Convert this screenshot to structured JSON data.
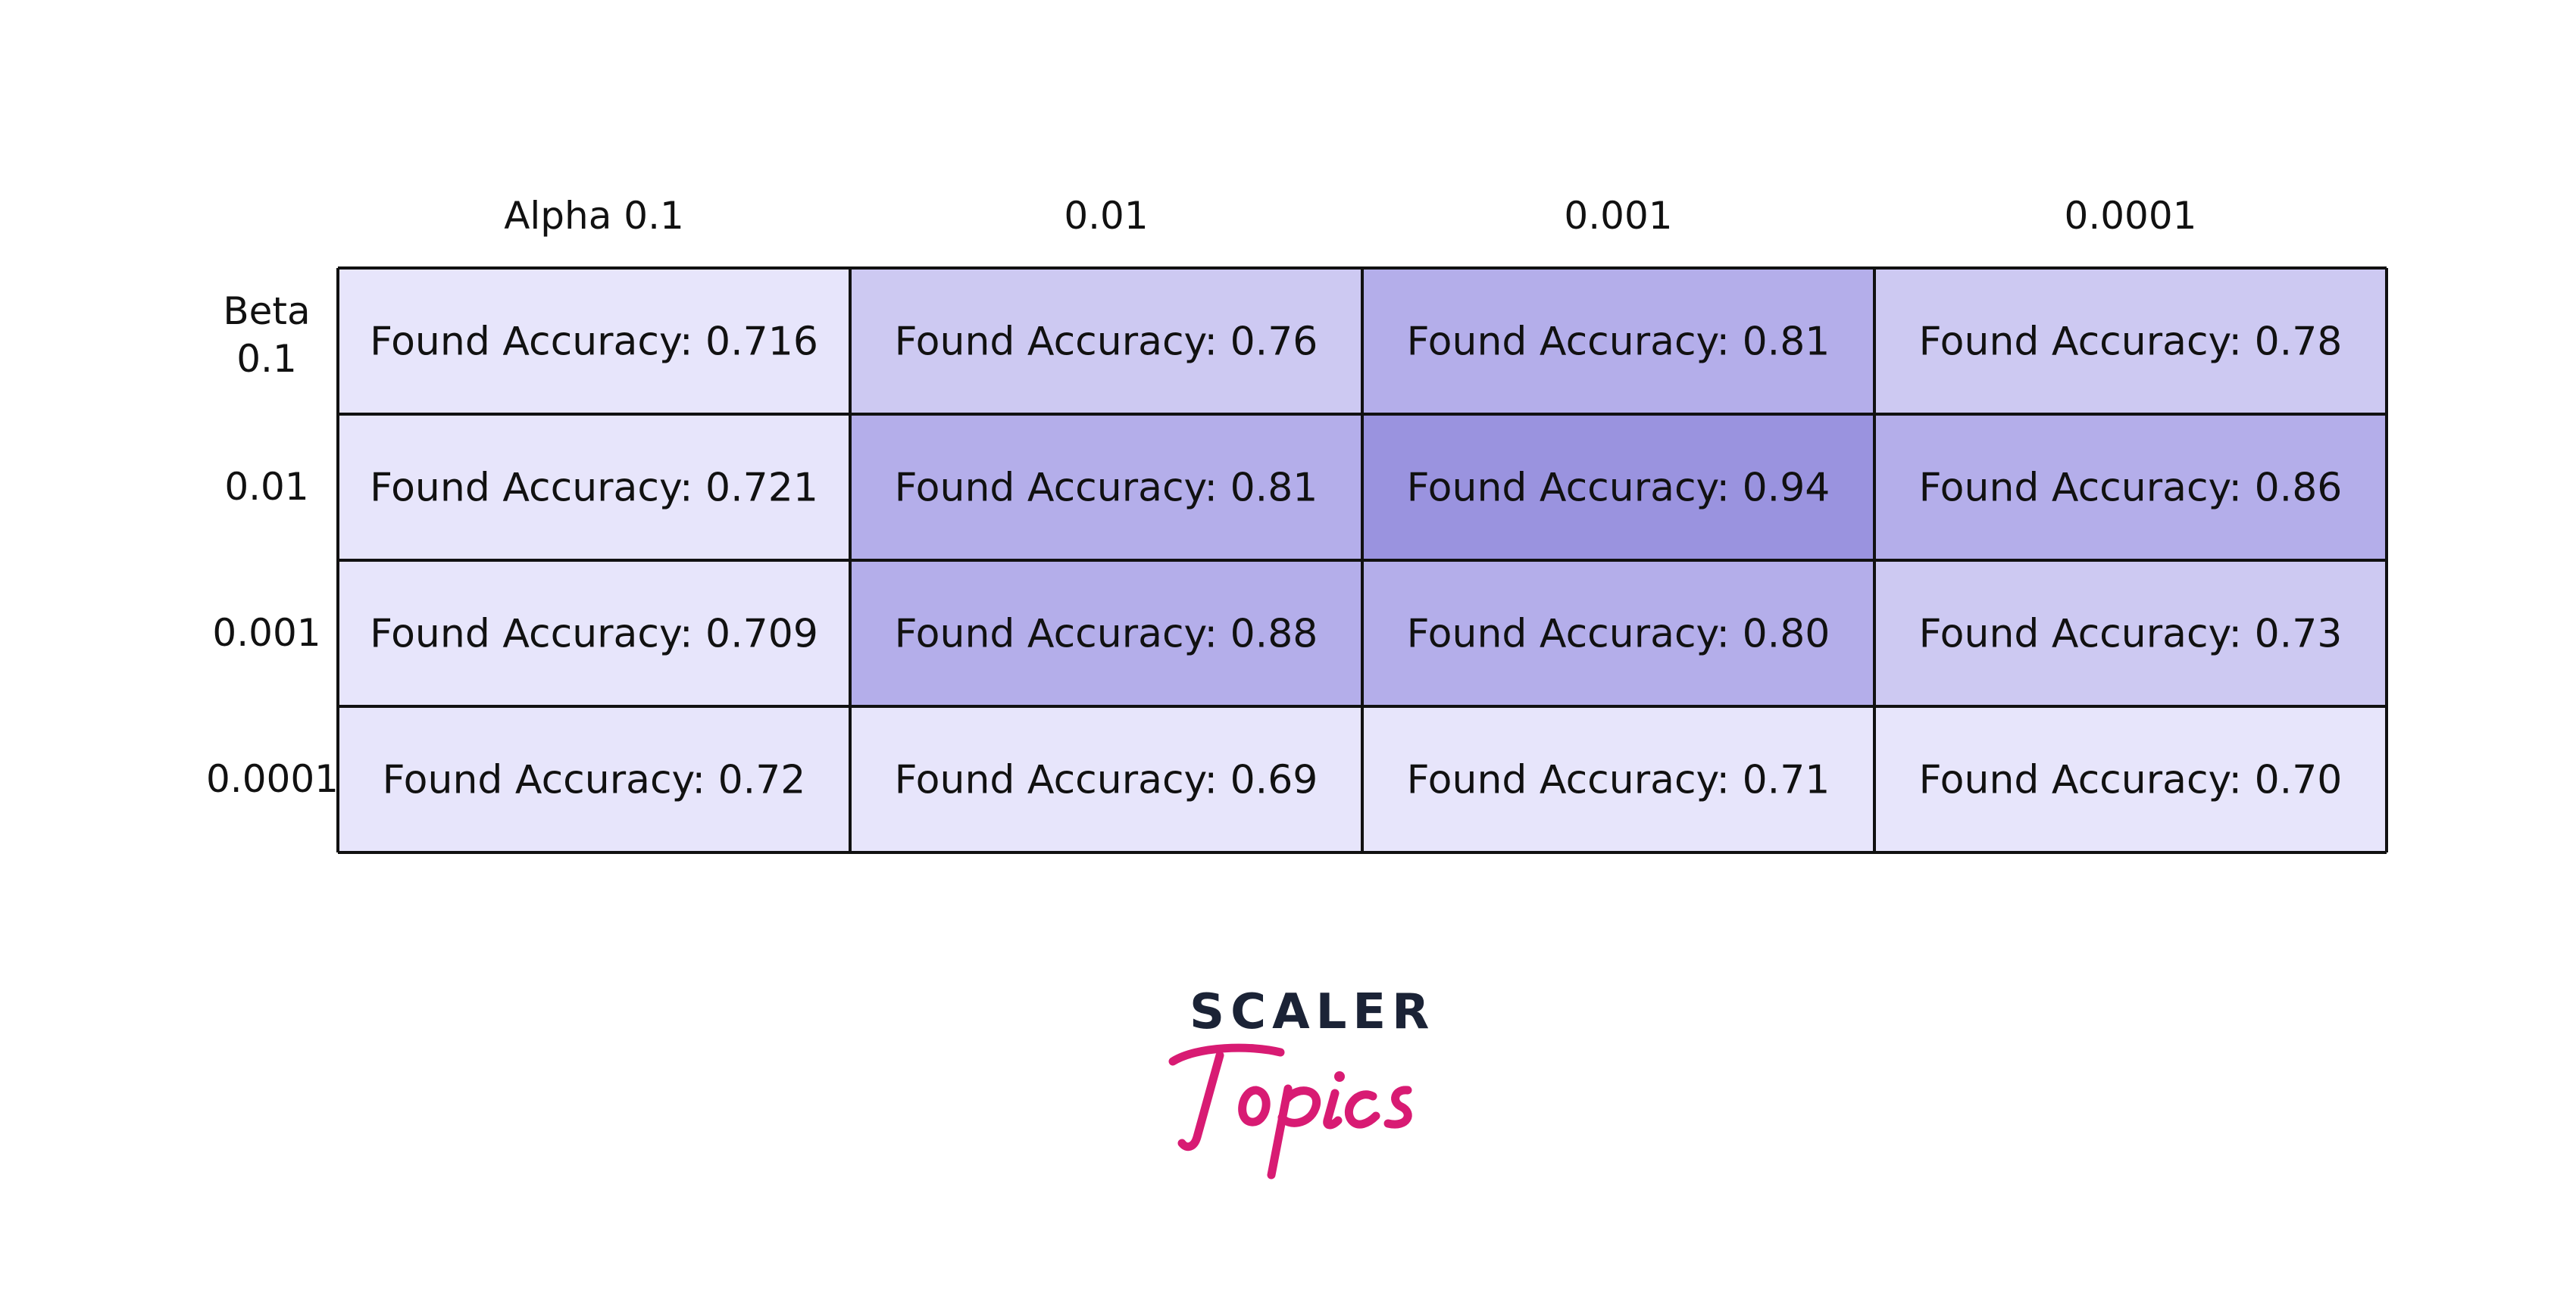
{
  "chart_data": {
    "type": "heatmap",
    "col_header_label": "Alpha",
    "row_header_label": "Beta",
    "columns": [
      "0.1",
      "0.01",
      "0.001",
      "0.0001"
    ],
    "rows": [
      "0.1",
      "0.01",
      "0.001",
      "0.0001"
    ],
    "cell_prefix": "Found Accuracy: ",
    "values": [
      [
        "0.716",
        "0.76",
        "0.81",
        "0.78"
      ],
      [
        "0.721",
        "0.81",
        "0.94",
        "0.86"
      ],
      [
        "0.709",
        "0.88",
        "0.80",
        "0.73"
      ],
      [
        "0.72",
        "0.69",
        "0.71",
        "0.70"
      ]
    ],
    "colors": {
      "light": "#e7e5fb",
      "mid_light": "#cdc9f2",
      "mid": "#b4aeea",
      "dark": "#9a93df",
      "border": "#111111"
    },
    "cell_color_levels": [
      [
        "light",
        "mid_light",
        "mid",
        "mid_light"
      ],
      [
        "light",
        "mid",
        "dark",
        "mid"
      ],
      [
        "light",
        "mid",
        "mid",
        "mid_light"
      ],
      [
        "light",
        "light",
        "light",
        "light"
      ]
    ]
  },
  "header": {
    "col_headers": [
      "Alpha 0.1",
      "0.01",
      "0.001",
      "0.0001"
    ],
    "row_headers": [
      "Beta\n0.1",
      "0.01",
      "0.001",
      "0.0001"
    ]
  },
  "logo": {
    "line1": "SCALER",
    "line2": "Topics",
    "line1_color": "#1b2336",
    "line2_color": "#d81b73"
  }
}
